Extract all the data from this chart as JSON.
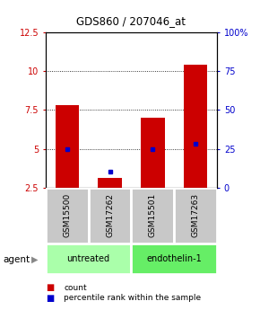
{
  "title": "GDS860 / 207046_at",
  "samples": [
    "GSM15500",
    "GSM17262",
    "GSM15501",
    "GSM17263"
  ],
  "count_values": [
    7.8,
    3.1,
    7.0,
    10.4
  ],
  "percentile_values": [
    25,
    10,
    25,
    28
  ],
  "groups": [
    {
      "label": "untreated",
      "indices": [
        0,
        1
      ],
      "color": "#aaffaa"
    },
    {
      "label": "endothelin-1",
      "indices": [
        2,
        3
      ],
      "color": "#66ee66"
    }
  ],
  "ylim_left": [
    2.5,
    12.5
  ],
  "ylim_right": [
    0,
    100
  ],
  "yticks_left": [
    2.5,
    5.0,
    7.5,
    10.0,
    12.5
  ],
  "yticks_right": [
    0,
    25,
    50,
    75,
    100
  ],
  "ytick_labels_left": [
    "2.5",
    "5",
    "7.5",
    "10",
    "12.5"
  ],
  "ytick_labels_right": [
    "0",
    "25",
    "50",
    "75",
    "100%"
  ],
  "bar_color": "#cc0000",
  "dot_color": "#0000cc",
  "agent_label": "agent",
  "legend_count_label": "count",
  "legend_percentile_label": "percentile rank within the sample",
  "bar_width": 0.55,
  "background_plot": "#ffffff",
  "sample_box_color": "#c8c8c8"
}
